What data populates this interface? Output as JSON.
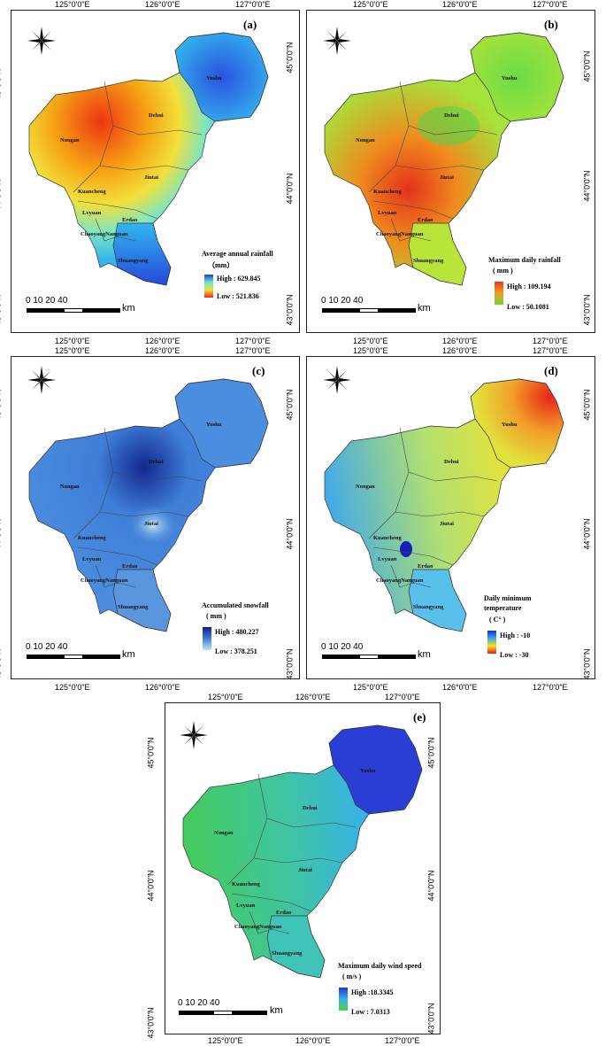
{
  "ticks": {
    "lon": [
      "125°0'0\"E",
      "126°0'0\"E",
      "127°0'0\"E"
    ],
    "lat": [
      "45°0'0\"N",
      "44°0'0\"N",
      "43°0'0\"N"
    ]
  },
  "places": {
    "yushu": "Yushu",
    "dehui": "Dehui",
    "nongan": "Nongan",
    "jiutai": "Jiutai",
    "kuancheng": "Kuancheng",
    "lvyuan": "Lvyuan",
    "erdao": "Erdao",
    "chaoyang_nanguan": "ChaoyangNanguan",
    "shuangyang": "Shuangyang"
  },
  "scale": {
    "numbers": "0   10  20        40",
    "unit": "km"
  },
  "panels": [
    {
      "label": "(a)",
      "title1": "Average annual rainfall",
      "title2": "（mm）",
      "high": "High : 629.845",
      "low": "Low : 521.836",
      "ramp": "#1f3fd6,#f02a16"
    },
    {
      "label": "(b)",
      "title1": "Maximum daily rainfall",
      "title2": "( mm )",
      "high": "High : 109.194",
      "low": "Low : 50.1081",
      "ramp": "#e8361b,#6fd43a"
    },
    {
      "label": "(c)",
      "title1": "Accumulated snowfall",
      "title2": "( mm )",
      "high": "High : 480.227",
      "low": "Low : 378.251",
      "ramp": "#0f1e8c,#bfe6f5"
    },
    {
      "label": "(d)",
      "title1": "Daily minimum",
      "title2": "temperature",
      "title3": "( C° )",
      "high": "High : -10",
      "low": "Low  : -30",
      "ramp": "#1a2ad6,#ffe11a,#e81a1a"
    },
    {
      "label": "(e)",
      "title1": "Maximum daily wind speed",
      "title2": "( m/s )",
      "high": "High :18.3345",
      "low": "Low  : 7.0313",
      "ramp": "#2035d8,#45d640"
    }
  ],
  "colors": {
    "a": {
      "nongan": "#ee3412",
      "west": "#f6a014",
      "mid": "#f2e03a",
      "center": "#7fe6c0",
      "east": "#33b6ee",
      "yushu": "#2a52e0",
      "south": "#2448dd"
    },
    "b": {
      "base": "#a6e23a",
      "dehui": "#4fd64a",
      "yushu": "#6bdc45",
      "jiutai": "#f08a1e",
      "lvyuan": "#e3321a",
      "south": "#b9e43a"
    },
    "c": {
      "base": "#3f7ed8",
      "dehui": "#12278f",
      "jiutai": "#c8ebf5",
      "yushu": "#4b8ee0",
      "south": "#5a96de"
    },
    "d": {
      "west": "#3ea8ec",
      "mid": "#b3e070",
      "east": "#e2e23e",
      "yushu": "#f19e28",
      "hot": "#e8261a",
      "lvyuan": "#1422b8",
      "south": "#58c0ea"
    },
    "e": {
      "west": "#45cc5c",
      "mid": "#3fc4a6",
      "east": "#38b2e6",
      "yushu": "#2a3ed6",
      "south": "#40c4b8"
    }
  }
}
